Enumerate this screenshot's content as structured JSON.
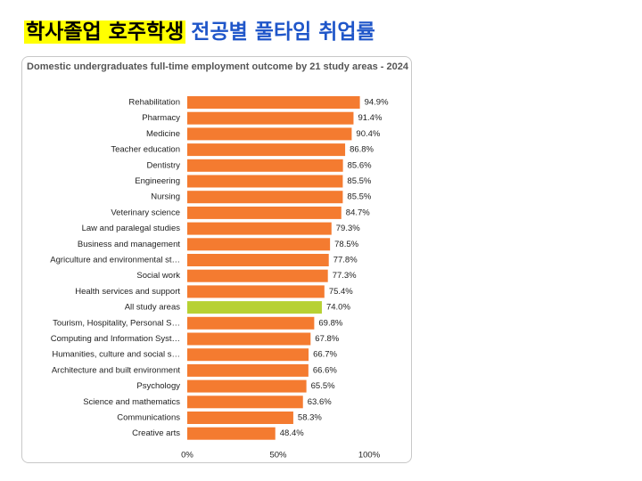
{
  "header": {
    "highlight": "학사졸업 호주학생",
    "title": "전공별 풀타임 취업률"
  },
  "chart_data": {
    "type": "bar",
    "orientation": "horizontal",
    "title": "Domestic undergraduates full-time employment outcome by 21 study areas - 2024",
    "categories": [
      "Rehabilitation",
      "Pharmacy",
      "Medicine",
      "Teacher education",
      "Dentistry",
      "Engineering",
      "Nursing",
      "Veterinary science",
      "Law and paralegal studies",
      "Business and management",
      "Agriculture and environmental st…",
      "Social work",
      "Health services and support",
      "All study areas",
      "Tourism, Hospitality, Personal S…",
      "Computing and Information Syst…",
      "Humanities, culture and social s…",
      "Architecture and built environment",
      "Psychology",
      "Science and mathematics",
      "Communications",
      "Creative arts"
    ],
    "values": [
      94.9,
      91.4,
      90.4,
      86.8,
      85.6,
      85.5,
      85.5,
      84.7,
      79.3,
      78.5,
      77.8,
      77.3,
      75.4,
      74.0,
      69.8,
      67.8,
      66.7,
      66.6,
      65.5,
      63.6,
      58.3,
      48.4
    ],
    "value_labels": [
      "94.9%",
      "91.4%",
      "90.4%",
      "86.8%",
      "85.6%",
      "85.5%",
      "85.5%",
      "84.7%",
      "79.3%",
      "78.5%",
      "77.8%",
      "77.3%",
      "75.4%",
      "74.0%",
      "69.8%",
      "67.8%",
      "66.7%",
      "66.6%",
      "65.5%",
      "63.6%",
      "58.3%",
      "48.4%"
    ],
    "colors": [
      "#f47b30",
      "#f47b30",
      "#f47b30",
      "#f47b30",
      "#f47b30",
      "#f47b30",
      "#f47b30",
      "#f47b30",
      "#f47b30",
      "#f47b30",
      "#f47b30",
      "#f47b30",
      "#f47b30",
      "#b7d133",
      "#f47b30",
      "#f47b30",
      "#f47b30",
      "#f47b30",
      "#f47b30",
      "#f47b30",
      "#f47b30",
      "#f47b30"
    ],
    "xlim": [
      0,
      100
    ],
    "xticks": [
      {
        "value": 0,
        "label": "0%"
      },
      {
        "value": 50,
        "label": "50%"
      },
      {
        "value": 100,
        "label": "100%"
      }
    ],
    "grid": false
  }
}
